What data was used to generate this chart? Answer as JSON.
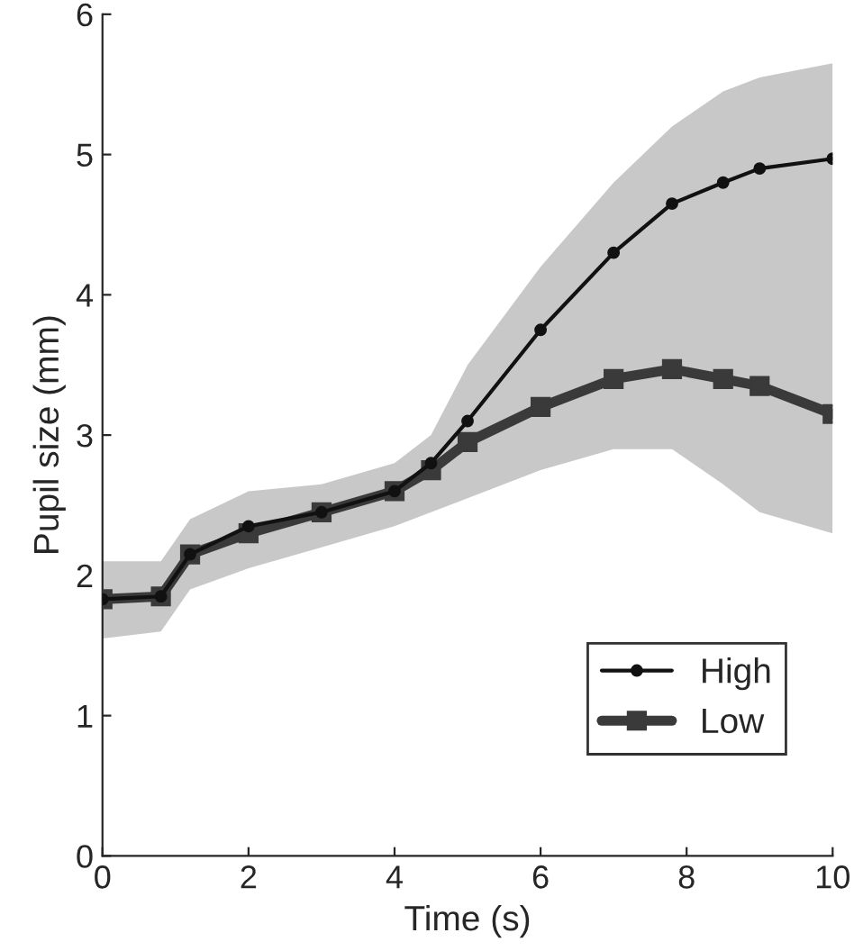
{
  "chart_data": {
    "type": "line",
    "xlabel": "Time (s)",
    "ylabel": "Pupil size (mm)",
    "x": [
      0,
      0.8,
      1.2,
      2,
      3,
      4,
      4.5,
      5,
      6,
      7,
      7.8,
      8.5,
      9,
      10
    ],
    "xlim": [
      0,
      10
    ],
    "xticks": [
      0,
      2,
      4,
      6,
      8,
      10
    ],
    "ylim": [
      0,
      6
    ],
    "yticks": [
      0,
      1,
      2,
      3,
      4,
      5,
      6
    ],
    "grid": false,
    "legend": "bottom right",
    "line_style": "solid",
    "series": [
      {
        "name": "High",
        "color": "#111111",
        "marker": "circle",
        "values": [
          1.83,
          1.85,
          2.15,
          2.35,
          2.45,
          2.6,
          2.8,
          3.1,
          3.75,
          4.3,
          4.65,
          4.8,
          4.9,
          4.97
        ],
        "lower": [
          1.55,
          1.6,
          1.9,
          2.05,
          2.2,
          2.35,
          2.45,
          2.55,
          2.75,
          2.9,
          2.9,
          2.65,
          2.45,
          2.3
        ],
        "upper": [
          2.1,
          2.1,
          2.4,
          2.6,
          2.65,
          2.8,
          3.0,
          3.5,
          4.2,
          4.8,
          5.2,
          5.45,
          5.55,
          5.65
        ]
      },
      {
        "name": "Low",
        "color": "#3a3a3a",
        "marker": "square",
        "values": [
          1.83,
          1.85,
          2.15,
          2.3,
          2.45,
          2.6,
          2.75,
          2.95,
          3.2,
          3.4,
          3.47,
          3.4,
          3.35,
          3.15
        ]
      }
    ]
  }
}
